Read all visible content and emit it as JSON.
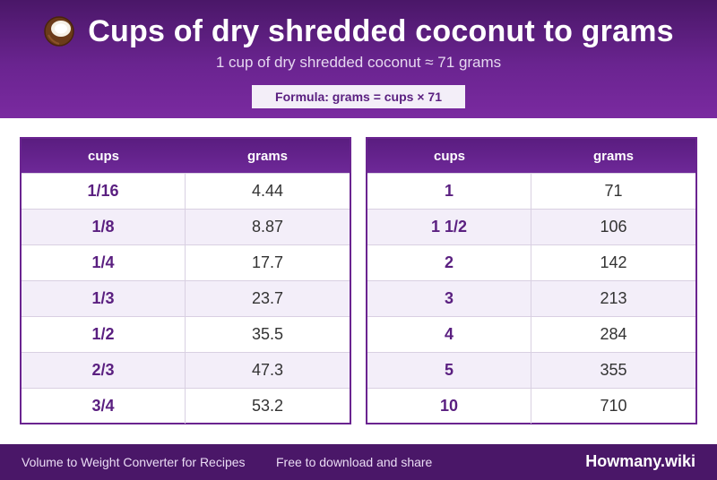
{
  "header": {
    "title": "Cups of dry shredded coconut to grams",
    "subtitle": "1 cup of dry shredded coconut ≈ 71 grams",
    "formula": "Formula: grams = cups × 71",
    "icon": "coconut-icon"
  },
  "tables": [
    {
      "headers": [
        "cups",
        "grams"
      ],
      "rows": [
        [
          "1/16",
          "4.44"
        ],
        [
          "1/8",
          "8.87"
        ],
        [
          "1/4",
          "17.7"
        ],
        [
          "1/3",
          "23.7"
        ],
        [
          "1/2",
          "35.5"
        ],
        [
          "2/3",
          "47.3"
        ],
        [
          "3/4",
          "53.2"
        ]
      ]
    },
    {
      "headers": [
        "cups",
        "grams"
      ],
      "rows": [
        [
          "1",
          "71"
        ],
        [
          "1 1/2",
          "106"
        ],
        [
          "2",
          "142"
        ],
        [
          "3",
          "213"
        ],
        [
          "4",
          "284"
        ],
        [
          "5",
          "355"
        ],
        [
          "10",
          "710"
        ]
      ]
    }
  ],
  "footer": {
    "left_text": "Volume to Weight Converter for Recipes",
    "left_text_2": "Free to download and share",
    "brand": "Howmany.wiki"
  },
  "colors": {
    "header_bg": "#6a2490",
    "accent_text": "#5a1f80",
    "row_alt": "#f3eef9",
    "footer_bg": "#4a1768"
  }
}
